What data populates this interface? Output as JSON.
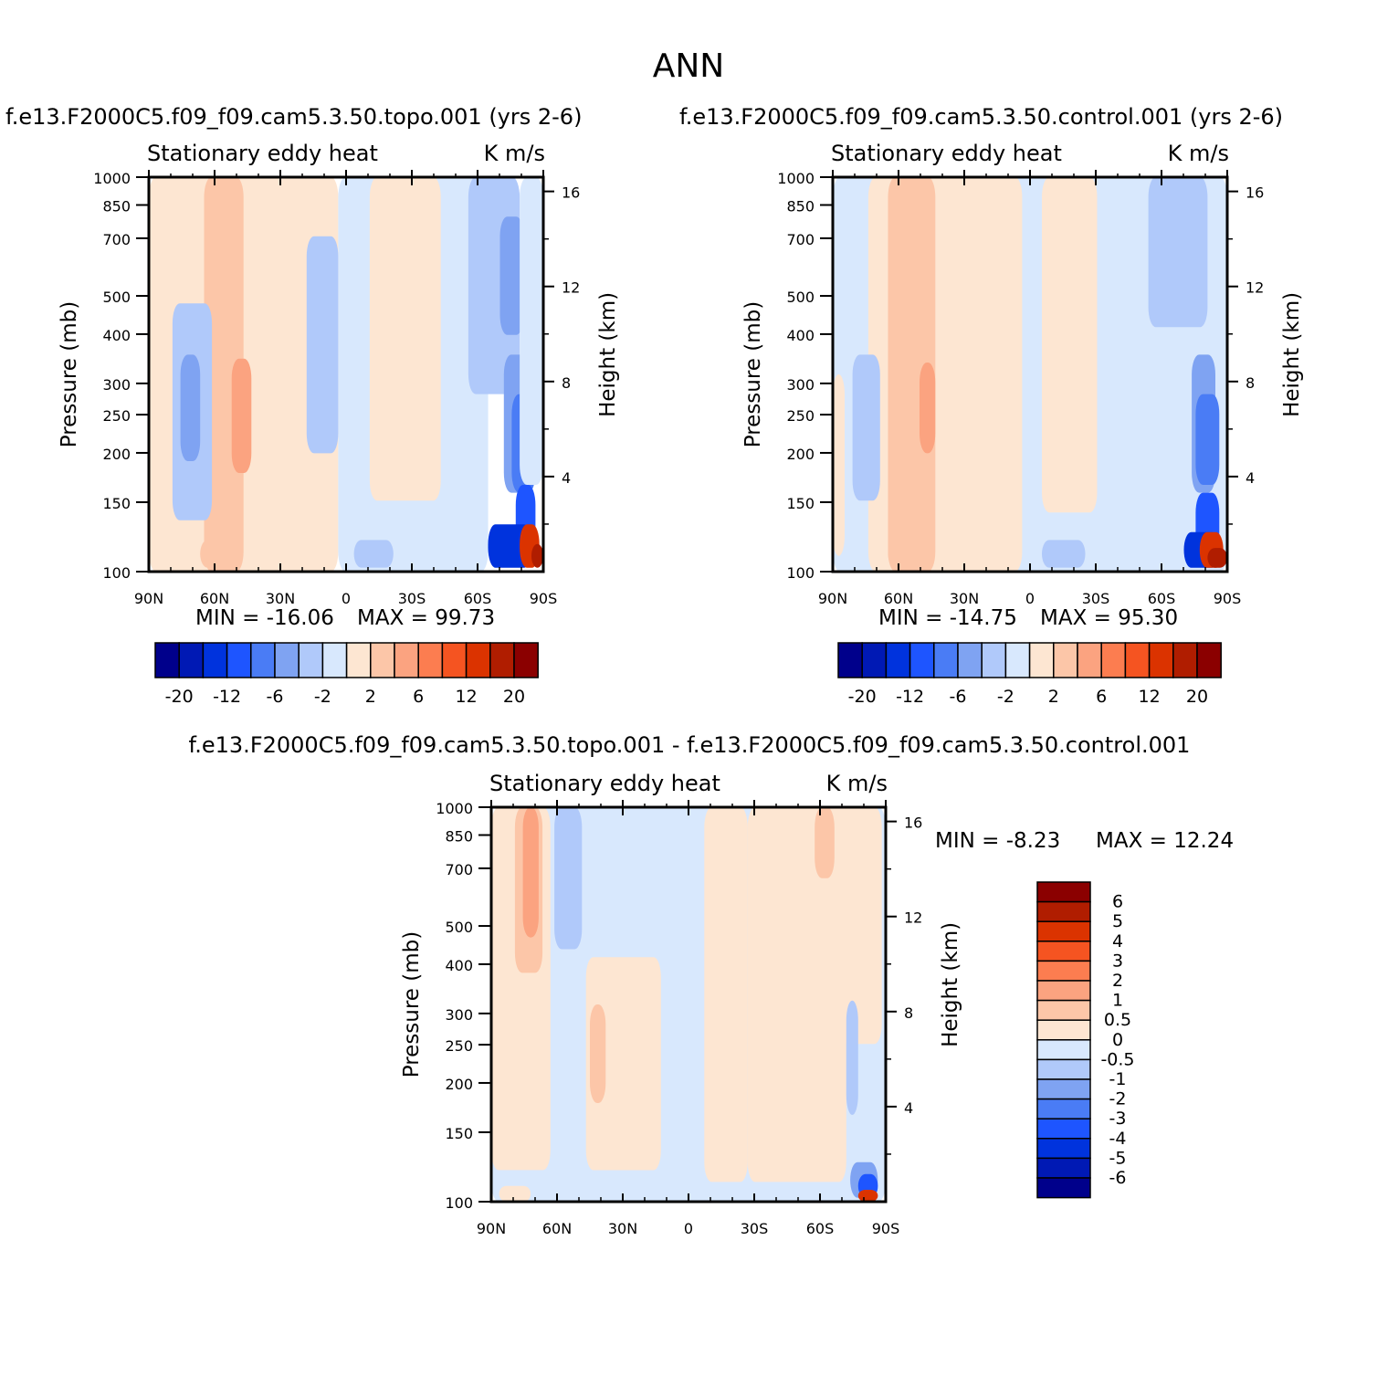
{
  "page_title": "ANN",
  "colors": {
    "neg": [
      "#00008b",
      "#0019b4",
      "#0033dd",
      "#1e55ff",
      "#4a7cf5",
      "#7fa3f2",
      "#b0c9fa",
      "#d8e8fd"
    ],
    "pos": [
      "#fde6d2",
      "#fcc6a8",
      "#fba380",
      "#fc7d50",
      "#f55421",
      "#db3300",
      "#b01d00",
      "#8b0000"
    ],
    "frame": "#000000",
    "background": "#ffffff"
  },
  "chart_data": [
    {
      "id": "topo",
      "type": "contour",
      "title": "f.e13.F2000C5.f09_f09.cam5.3.50.topo.001  (yrs 2-6)",
      "variable": "Stationary  eddy  heat",
      "units": "K  m/s",
      "ylabel": "Pressure  (mb)",
      "ylabel_right": "Height  (km)",
      "x_ticks": [
        "90N",
        "60N",
        "30N",
        "0",
        "30S",
        "60S",
        "90S"
      ],
      "y_ticks": [
        "100",
        "150",
        "200",
        "250",
        "300",
        "400",
        "500",
        "700",
        "850",
        "1000"
      ],
      "height_ticks": [
        "16",
        "12",
        "8",
        "4"
      ],
      "min_text": "MIN  =  -16.06",
      "max_text": "MAX  =   99.73",
      "min": -16.06,
      "max": 99.73,
      "colorbar_labels": [
        "-20",
        "-12",
        "-6",
        "-2",
        "2",
        "6",
        "12",
        "20"
      ]
    },
    {
      "id": "control",
      "type": "contour",
      "title": "f.e13.F2000C5.f09_f09.cam5.3.50.control.001  (yrs 2-6)",
      "variable": "Stationary  eddy  heat",
      "units": "K  m/s",
      "ylabel": "Pressure  (mb)",
      "ylabel_right": "Height  (km)",
      "x_ticks": [
        "90N",
        "60N",
        "30N",
        "0",
        "30S",
        "60S",
        "90S"
      ],
      "y_ticks": [
        "100",
        "150",
        "200",
        "250",
        "300",
        "400",
        "500",
        "700",
        "850",
        "1000"
      ],
      "height_ticks": [
        "16",
        "12",
        "8",
        "4"
      ],
      "min_text": "MIN  =  -14.75",
      "max_text": "MAX  =   95.30",
      "min": -14.75,
      "max": 95.3,
      "colorbar_labels": [
        "-20",
        "-12",
        "-6",
        "-2",
        "2",
        "6",
        "12",
        "20"
      ]
    },
    {
      "id": "diff",
      "type": "contour",
      "title": "f.e13.F2000C5.f09_f09.cam5.3.50.topo.001  -  f.e13.F2000C5.f09_f09.cam5.3.50.control.001",
      "variable": "Stationary  eddy  heat",
      "units": "K  m/s",
      "ylabel": "Pressure  (mb)",
      "ylabel_right": "Height  (km)",
      "x_ticks": [
        "90N",
        "60N",
        "30N",
        "0",
        "30S",
        "60S",
        "90S"
      ],
      "y_ticks": [
        "100",
        "150",
        "200",
        "250",
        "300",
        "400",
        "500",
        "700",
        "850",
        "1000"
      ],
      "height_ticks": [
        "16",
        "12",
        "8",
        "4"
      ],
      "min_text": "MIN  =   -8.23",
      "max_text": "MAX  =   12.24",
      "min": -8.23,
      "max": 12.24,
      "colorbar_labels": [
        "6",
        "5",
        "4",
        "3",
        "2",
        "1",
        "0.5",
        "0",
        "-0.5",
        "-1",
        "-2",
        "-3",
        "-4",
        "-5",
        "-6"
      ]
    }
  ]
}
